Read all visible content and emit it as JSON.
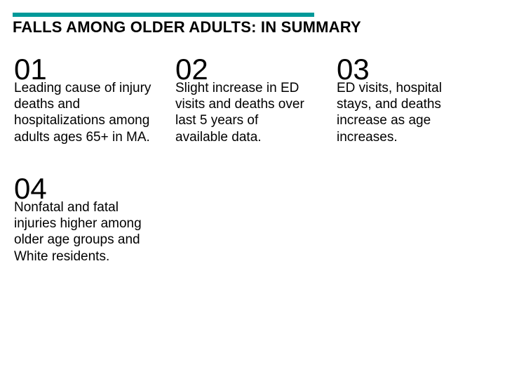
{
  "title_rule_color": "#009999",
  "title": "FALLS AMONG OLDER ADULTS: IN SUMMARY",
  "cards": [
    {
      "num": "01",
      "text": "Leading cause of injury deaths and hospitalizations among adults ages 65+ in MA.",
      "bg": "#0099b3"
    },
    {
      "num": "02",
      "text": "Slight increase in ED visits and deaths over last 5 years of available data.",
      "bg": "#8fb33b"
    },
    {
      "num": "03",
      "text": "ED visits, hospital stays, and deaths increase as age increases.",
      "bg": null
    },
    {
      "num": "04",
      "text": "Nonfatal and fatal injuries higher among older age groups and White residents.",
      "bg": "#009982"
    }
  ]
}
